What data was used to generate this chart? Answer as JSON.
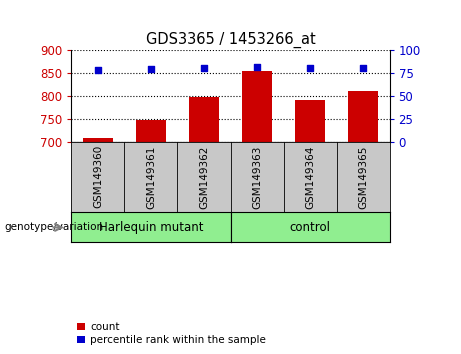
{
  "title": "GDS3365 / 1453266_at",
  "samples": [
    "GSM149360",
    "GSM149361",
    "GSM149362",
    "GSM149363",
    "GSM149364",
    "GSM149365"
  ],
  "count_values": [
    708,
    748,
    797,
    854,
    791,
    810
  ],
  "percentile_values": [
    78,
    79,
    80,
    81,
    80,
    80
  ],
  "ylim_left": [
    700,
    900
  ],
  "ylim_right": [
    0,
    100
  ],
  "yticks_left": [
    700,
    750,
    800,
    850,
    900
  ],
  "yticks_right": [
    0,
    25,
    50,
    75,
    100
  ],
  "n_harlequin": 3,
  "n_control": 3,
  "group_labels": [
    "Harlequin mutant",
    "control"
  ],
  "bar_color": "#cc0000",
  "dot_color": "#0000cc",
  "bar_width": 0.55,
  "tick_label_color_left": "#cc0000",
  "tick_label_color_right": "#0000cc",
  "legend_items": [
    {
      "label": "count",
      "color": "#cc0000"
    },
    {
      "label": "percentile rank within the sample",
      "color": "#0000cc"
    }
  ],
  "genotype_label": "genotype/variation",
  "sample_bg_color": "#c8c8c8",
  "group_box_color": "#90ee90",
  "fig_bg": "#ffffff"
}
